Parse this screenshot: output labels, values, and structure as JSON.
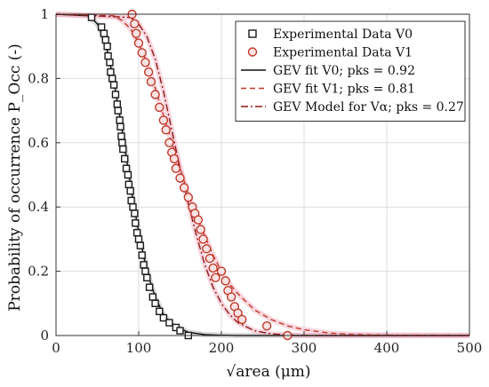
{
  "chart_data": {
    "type": "scatter",
    "xlabel": "√area (μm)",
    "ylabel": "Probability of occurrence P_Occ (-)",
    "xlim": [
      0,
      500
    ],
    "ylim": [
      0,
      1
    ],
    "xticks": [
      "0",
      "100",
      "200",
      "300",
      "400",
      "500"
    ],
    "yticks": [
      "0",
      "0.2",
      "0.4",
      "0.6",
      "0.8",
      "1"
    ],
    "grid": true,
    "legend_position": "top-right",
    "legend": [
      "Experimental Data V0",
      "Experimental Data V1",
      "GEV fit V0; pks = 0.92",
      "GEV fit V1; pks = 0.81",
      "GEV Model for Vα; pks = 0.27"
    ],
    "series": [
      {
        "name": "Experimental Data V0",
        "style": "scatter",
        "marker": "square",
        "color": "#1a1a1a",
        "x": [
          43,
          55,
          58,
          60,
          62,
          63,
          65,
          66,
          68,
          70,
          72,
          74,
          75,
          77,
          78,
          79,
          80,
          81,
          83,
          85,
          87,
          88,
          90,
          91,
          93,
          95,
          96,
          98,
          100,
          102,
          104,
          106,
          108,
          110,
          113,
          117,
          120,
          125,
          130,
          137,
          145,
          150,
          160
        ],
        "y": [
          0.99,
          0.96,
          0.94,
          0.92,
          0.9,
          0.87,
          0.85,
          0.82,
          0.8,
          0.78,
          0.75,
          0.72,
          0.7,
          0.67,
          0.65,
          0.62,
          0.6,
          0.58,
          0.55,
          0.52,
          0.5,
          0.47,
          0.45,
          0.42,
          0.4,
          0.38,
          0.35,
          0.32,
          0.3,
          0.28,
          0.25,
          0.22,
          0.2,
          0.18,
          0.15,
          0.12,
          0.1,
          0.075,
          0.055,
          0.04,
          0.025,
          0.015,
          0.0
        ]
      },
      {
        "name": "Experimental Data V1",
        "style": "scatter",
        "marker": "circle",
        "color": "#c0392b",
        "x": [
          92,
          95,
          97,
          100,
          104,
          108,
          112,
          115,
          120,
          125,
          130,
          133,
          137,
          140,
          143,
          145,
          150,
          155,
          160,
          165,
          168,
          172,
          175,
          178,
          182,
          186,
          190,
          193,
          200,
          205,
          208,
          212,
          216,
          220,
          225,
          255,
          280
        ],
        "y": [
          1.0,
          0.97,
          0.94,
          0.91,
          0.88,
          0.85,
          0.82,
          0.79,
          0.75,
          0.71,
          0.67,
          0.64,
          0.6,
          0.57,
          0.55,
          0.52,
          0.49,
          0.46,
          0.43,
          0.4,
          0.38,
          0.36,
          0.33,
          0.3,
          0.27,
          0.24,
          0.21,
          0.18,
          0.2,
          0.17,
          0.14,
          0.12,
          0.09,
          0.07,
          0.05,
          0.03,
          0.0
        ]
      },
      {
        "name": "GEV fit V0; pks = 0.92",
        "style": "line",
        "dash": "solid",
        "color": "#111111",
        "x": [
          0,
          40,
          50,
          60,
          70,
          80,
          90,
          100,
          110,
          120,
          130,
          140,
          160,
          180,
          200,
          220,
          500
        ],
        "y": [
          1.0,
          0.995,
          0.97,
          0.91,
          0.79,
          0.64,
          0.47,
          0.32,
          0.2,
          0.12,
          0.065,
          0.035,
          0.01,
          0.003,
          0.001,
          0.0,
          0.0
        ]
      },
      {
        "name": "GEV fit V1; pks = 0.81",
        "style": "line",
        "dash": "dashed",
        "color": "#c0392b",
        "x": [
          0,
          70,
          80,
          90,
          100,
          110,
          120,
          130,
          140,
          150,
          160,
          170,
          180,
          190,
          200,
          210,
          220,
          240,
          260,
          280,
          300,
          330,
          360,
          400,
          500
        ],
        "y": [
          1.0,
          0.995,
          0.98,
          0.955,
          0.91,
          0.85,
          0.77,
          0.685,
          0.6,
          0.52,
          0.44,
          0.37,
          0.31,
          0.25,
          0.2,
          0.16,
          0.13,
          0.08,
          0.05,
          0.03,
          0.018,
          0.008,
          0.003,
          0.001,
          0.0
        ]
      },
      {
        "name": "GEV Model for Vα; pks = 0.27",
        "style": "line",
        "dash": "dashdot",
        "color": "#8b1a1a",
        "x": [
          0,
          90,
          100,
          110,
          120,
          130,
          140,
          150,
          160,
          170,
          180,
          190,
          200,
          210,
          220,
          240,
          260,
          280,
          300,
          500
        ],
        "y": [
          1.0,
          0.99,
          0.97,
          0.93,
          0.86,
          0.76,
          0.64,
          0.52,
          0.41,
          0.31,
          0.22,
          0.15,
          0.1,
          0.065,
          0.04,
          0.015,
          0.005,
          0.002,
          0.0,
          0.0
        ]
      }
    ]
  }
}
